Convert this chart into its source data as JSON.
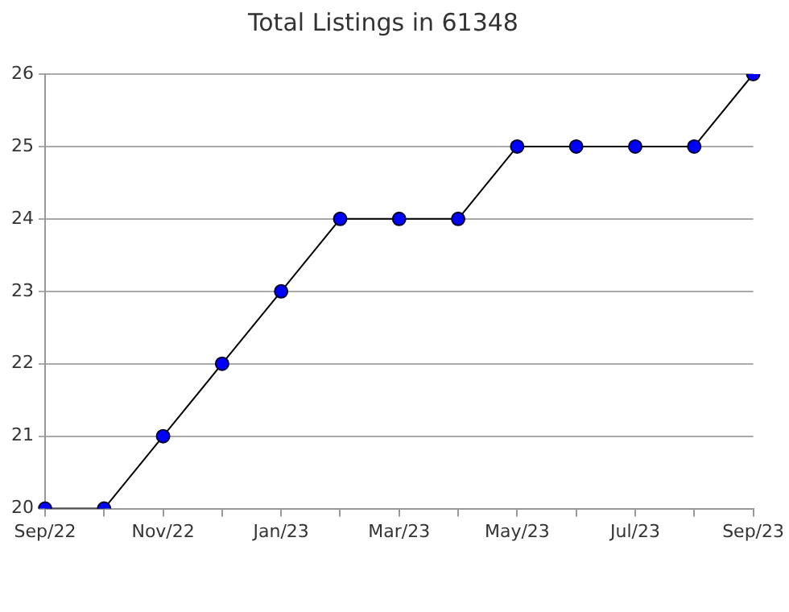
{
  "chart_data": {
    "type": "line",
    "title": "Total Listings in 61348",
    "categories": [
      "Sep/22",
      null,
      "Nov/22",
      null,
      "Jan/23",
      null,
      "Mar/23",
      null,
      "May/23",
      null,
      "Jul/23",
      null,
      "Sep/23"
    ],
    "series": [
      {
        "color": "#0000ff",
        "values": [
          20,
          20,
          21,
          22,
          23,
          24,
          24,
          24,
          25,
          25,
          25,
          25,
          26
        ]
      }
    ],
    "ylim": [
      20,
      26
    ],
    "yticks": [
      20,
      21,
      22,
      23,
      24,
      25,
      26
    ],
    "grid": "y",
    "marker": "circle",
    "line_style": "solid",
    "legend": false
  }
}
